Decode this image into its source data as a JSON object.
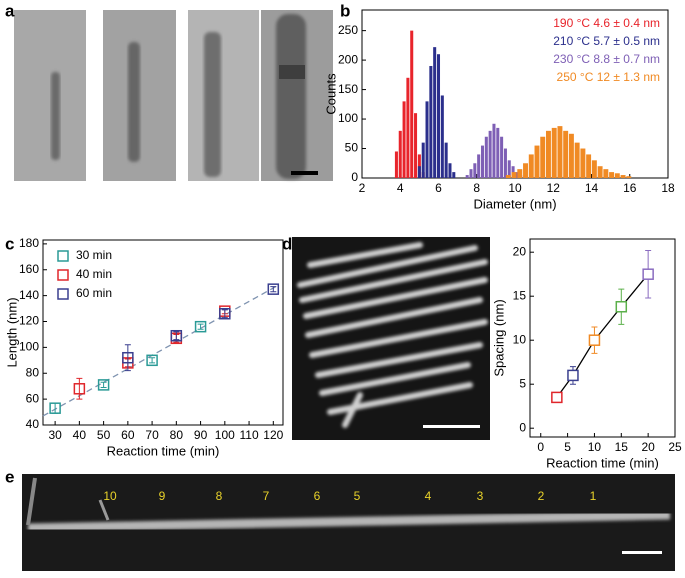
{
  "panel_labels": [
    "a",
    "b",
    "c",
    "d",
    "e"
  ],
  "panel_e": {
    "labels": [
      "10",
      "9",
      "8",
      "7",
      "6",
      "5",
      "4",
      "3",
      "2",
      "1"
    ],
    "color": "#e8d22a"
  },
  "chart_data": [
    {
      "type": "histogram",
      "x_label": "Diameter (nm)",
      "y_label": "Counts",
      "xlim": [
        2,
        18
      ],
      "ylim": [
        0,
        285
      ],
      "xticks": [
        2,
        4,
        6,
        8,
        10,
        12,
        14,
        16,
        18
      ],
      "yticks": [
        0,
        50,
        100,
        150,
        200,
        250
      ],
      "series": [
        {
          "name": "190 °C 4.6 ± 0.4 nm",
          "color": "#e8242b",
          "bins": [
            3.7,
            3.9,
            4.1,
            4.3,
            4.5,
            4.7,
            4.9,
            5.1,
            5.3
          ],
          "values": [
            45,
            80,
            130,
            170,
            250,
            110,
            40,
            10
          ]
        },
        {
          "name": "210 °C 5.7 ± 0.5 nm",
          "color": "#2b2f8c",
          "bins": [
            4.9,
            5.1,
            5.3,
            5.5,
            5.7,
            5.9,
            6.1,
            6.3,
            6.5,
            6.7,
            6.9
          ],
          "values": [
            20,
            60,
            130,
            190,
            222,
            210,
            140,
            60,
            25,
            10
          ]
        },
        {
          "name": "230 °C 8.8 ± 0.7 nm",
          "color": "#7e5fb5",
          "bins": [
            7.4,
            7.6,
            7.8,
            8.0,
            8.2,
            8.4,
            8.6,
            8.8,
            9.0,
            9.2,
            9.4,
            9.6,
            9.8,
            10.0,
            10.2,
            10.4
          ],
          "values": [
            5,
            15,
            25,
            40,
            55,
            70,
            80,
            92,
            85,
            70,
            50,
            30,
            20,
            10,
            5
          ]
        },
        {
          "name": "250 °C 12 ± 1.3 nm",
          "color": "#f08a24",
          "bins": [
            9.5,
            9.8,
            10.1,
            10.4,
            10.7,
            11.0,
            11.3,
            11.6,
            11.9,
            12.2,
            12.5,
            12.8,
            13.1,
            13.4,
            13.7,
            14.0,
            14.3,
            14.6,
            14.9,
            15.2,
            15.5,
            15.8,
            16.1
          ],
          "values": [
            5,
            10,
            15,
            25,
            40,
            55,
            70,
            80,
            85,
            88,
            80,
            75,
            60,
            50,
            40,
            30,
            20,
            15,
            10,
            8,
            5,
            3
          ]
        }
      ]
    },
    {
      "type": "scatter",
      "x_label": "Reaction time (min)",
      "y_label": "Length (nm)",
      "xlim": [
        25,
        124
      ],
      "ylim": [
        40,
        183
      ],
      "xticks": [
        30,
        40,
        50,
        60,
        70,
        80,
        90,
        100,
        110,
        120
      ],
      "yticks": [
        40,
        60,
        80,
        100,
        120,
        140,
        160,
        180
      ],
      "fit_line": {
        "x": [
          25,
          122
        ],
        "values": [
          47,
          148
        ],
        "color": "#7f93b0"
      },
      "series": [
        {
          "name": "30 min",
          "color": "#2a9a96",
          "x": [
            30,
            50,
            70,
            90
          ],
          "values": [
            53,
            71,
            90,
            116
          ],
          "errors": [
            4,
            2,
            2,
            2
          ]
        },
        {
          "name": "40 min",
          "color": "#e0262b",
          "x": [
            40,
            60,
            80,
            100
          ],
          "values": [
            68,
            88,
            107,
            128
          ],
          "errors": [
            8,
            3,
            3,
            2
          ]
        },
        {
          "name": "60 min",
          "color": "#3a3f8f",
          "x": [
            60,
            80,
            100,
            120
          ],
          "values": [
            92,
            109,
            126,
            145
          ],
          "errors": [
            10,
            3,
            3,
            2
          ]
        }
      ]
    },
    {
      "type": "line",
      "x_label": "Reaction time (min)",
      "y_label": "Spacing (nm)",
      "xlim": [
        -2,
        25
      ],
      "ylim": [
        -1,
        21.5
      ],
      "xticks": [
        0,
        5,
        10,
        15,
        20,
        25
      ],
      "yticks": [
        0,
        5,
        10,
        15,
        20
      ],
      "x": [
        3,
        6,
        10,
        15,
        20
      ],
      "values": [
        3.5,
        6,
        10,
        13.8,
        17.5
      ],
      "errors": [
        0.3,
        1,
        1.5,
        2,
        2.7
      ],
      "line_color": "#000000",
      "colors": [
        "#e0262b",
        "#3a3f8f",
        "#f08a24",
        "#5bb04a",
        "#8a6cc0"
      ]
    }
  ]
}
